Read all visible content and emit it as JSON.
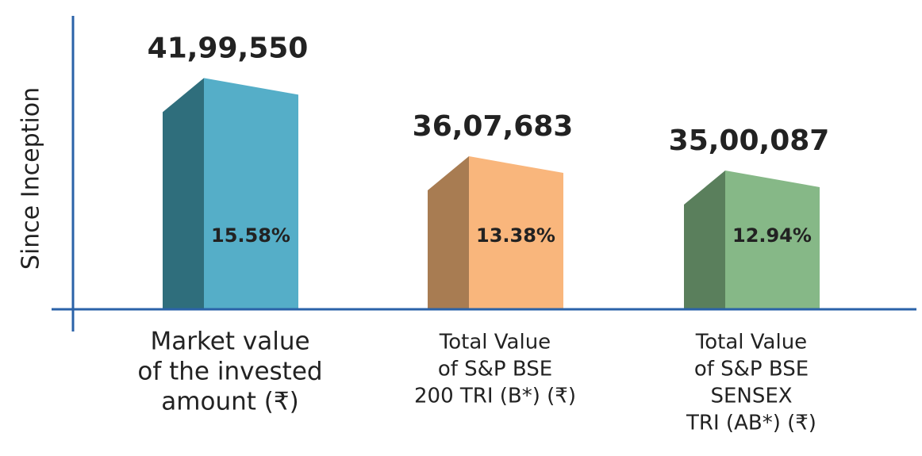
{
  "chart_data": {
    "type": "bar3d",
    "y_axis_label": "Since Inception",
    "categories": [
      [
        "Market value",
        "of the invested",
        "amount (₹)"
      ],
      [
        "Total Value",
        "of S&P BSE",
        "200 TRI (B*) (₹)"
      ],
      [
        "Total Value",
        "of S&P BSE",
        "SENSEX",
        "TRI (AB*) (₹)"
      ]
    ],
    "values": [
      4199550,
      3607683,
      3500087
    ],
    "value_labels": [
      "41,99,550",
      "36,07,683",
      "35,00,087"
    ],
    "annotations": [
      "15.58%",
      "13.38%",
      "12.94%"
    ],
    "colors": [
      "#55aec8",
      "#f9b67c",
      "#86b887"
    ],
    "shade_colors": [
      "#2f6e7c",
      "#a87c52",
      "#5a7f5c"
    ],
    "axis_color": "#2a62a8",
    "ylim": [
      2450000,
      4610000
    ]
  }
}
